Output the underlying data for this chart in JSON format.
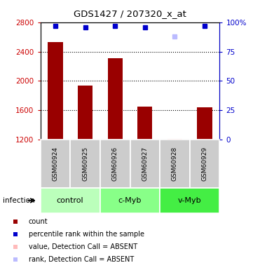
{
  "title": "GDS1427 / 207320_x_at",
  "samples": [
    "GSM60924",
    "GSM60925",
    "GSM60926",
    "GSM60927",
    "GSM60928",
    "GSM60929"
  ],
  "counts": [
    2530,
    1940,
    2310,
    1650,
    null,
    1640
  ],
  "absent_count": [
    null,
    null,
    null,
    null,
    1210,
    null
  ],
  "percentile_ranks": [
    97,
    96,
    97,
    96,
    null,
    97
  ],
  "absent_rank": [
    null,
    null,
    null,
    null,
    88,
    null
  ],
  "ylim_left": [
    1200,
    2800
  ],
  "ylim_right": [
    0,
    100
  ],
  "yticks_left": [
    1200,
    1600,
    2000,
    2400,
    2800
  ],
  "yticks_right": [
    0,
    25,
    50,
    75,
    100
  ],
  "groups": [
    {
      "label": "control",
      "samples": [
        0,
        1
      ],
      "color": "#bbffbb"
    },
    {
      "label": "c-Myb",
      "samples": [
        2,
        3
      ],
      "color": "#88ff88"
    },
    {
      "label": "v-Myb",
      "samples": [
        4,
        5
      ],
      "color": "#44ee44"
    }
  ],
  "bar_color": "#990000",
  "absent_bar_color": "#ffbbbb",
  "rank_color": "#0000cc",
  "absent_rank_color": "#bbbbff",
  "left_axis_color": "#cc0000",
  "right_axis_color": "#0000cc",
  "background_color": "#ffffff",
  "sample_bg_color": "#cccccc",
  "infection_label": "infection",
  "legend_items": [
    {
      "label": "count",
      "color": "#990000"
    },
    {
      "label": "percentile rank within the sample",
      "color": "#0000cc"
    },
    {
      "label": "value, Detection Call = ABSENT",
      "color": "#ffbbbb"
    },
    {
      "label": "rank, Detection Call = ABSENT",
      "color": "#bbbbff"
    }
  ]
}
